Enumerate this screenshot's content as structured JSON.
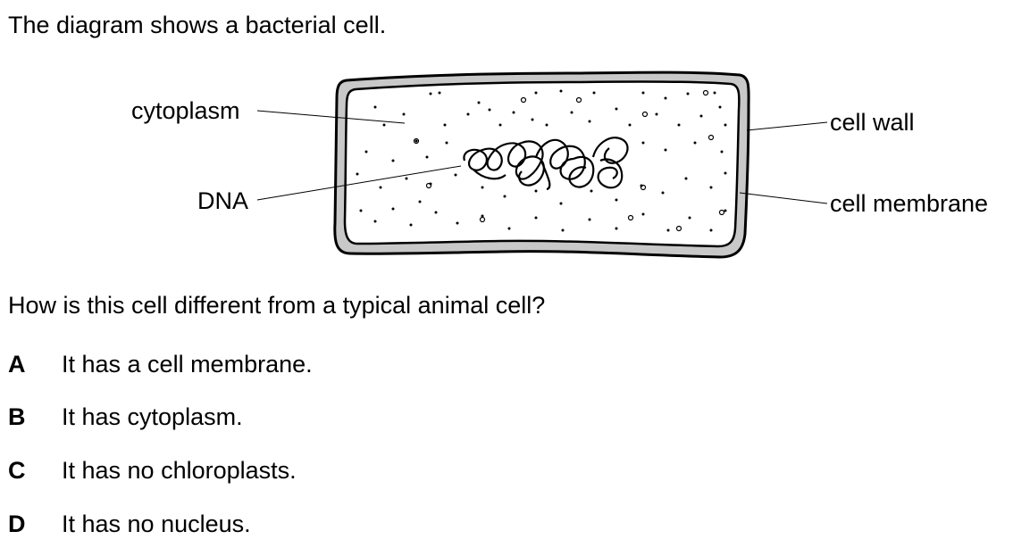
{
  "intro": "The diagram shows a bacterial cell.",
  "diagram": {
    "labels": {
      "cytoplasm": "cytoplasm",
      "dna": "DNA",
      "cell_wall": "cell wall",
      "cell_membrane": "cell membrane"
    }
  },
  "question": "How is this cell different from a typical animal cell?",
  "options": [
    {
      "letter": "A",
      "text": "It has a cell membrane."
    },
    {
      "letter": "B",
      "text": "It has cytoplasm."
    },
    {
      "letter": "C",
      "text": "It has no chloroplasts."
    },
    {
      "letter": "D",
      "text": "It has no nucleus."
    }
  ]
}
